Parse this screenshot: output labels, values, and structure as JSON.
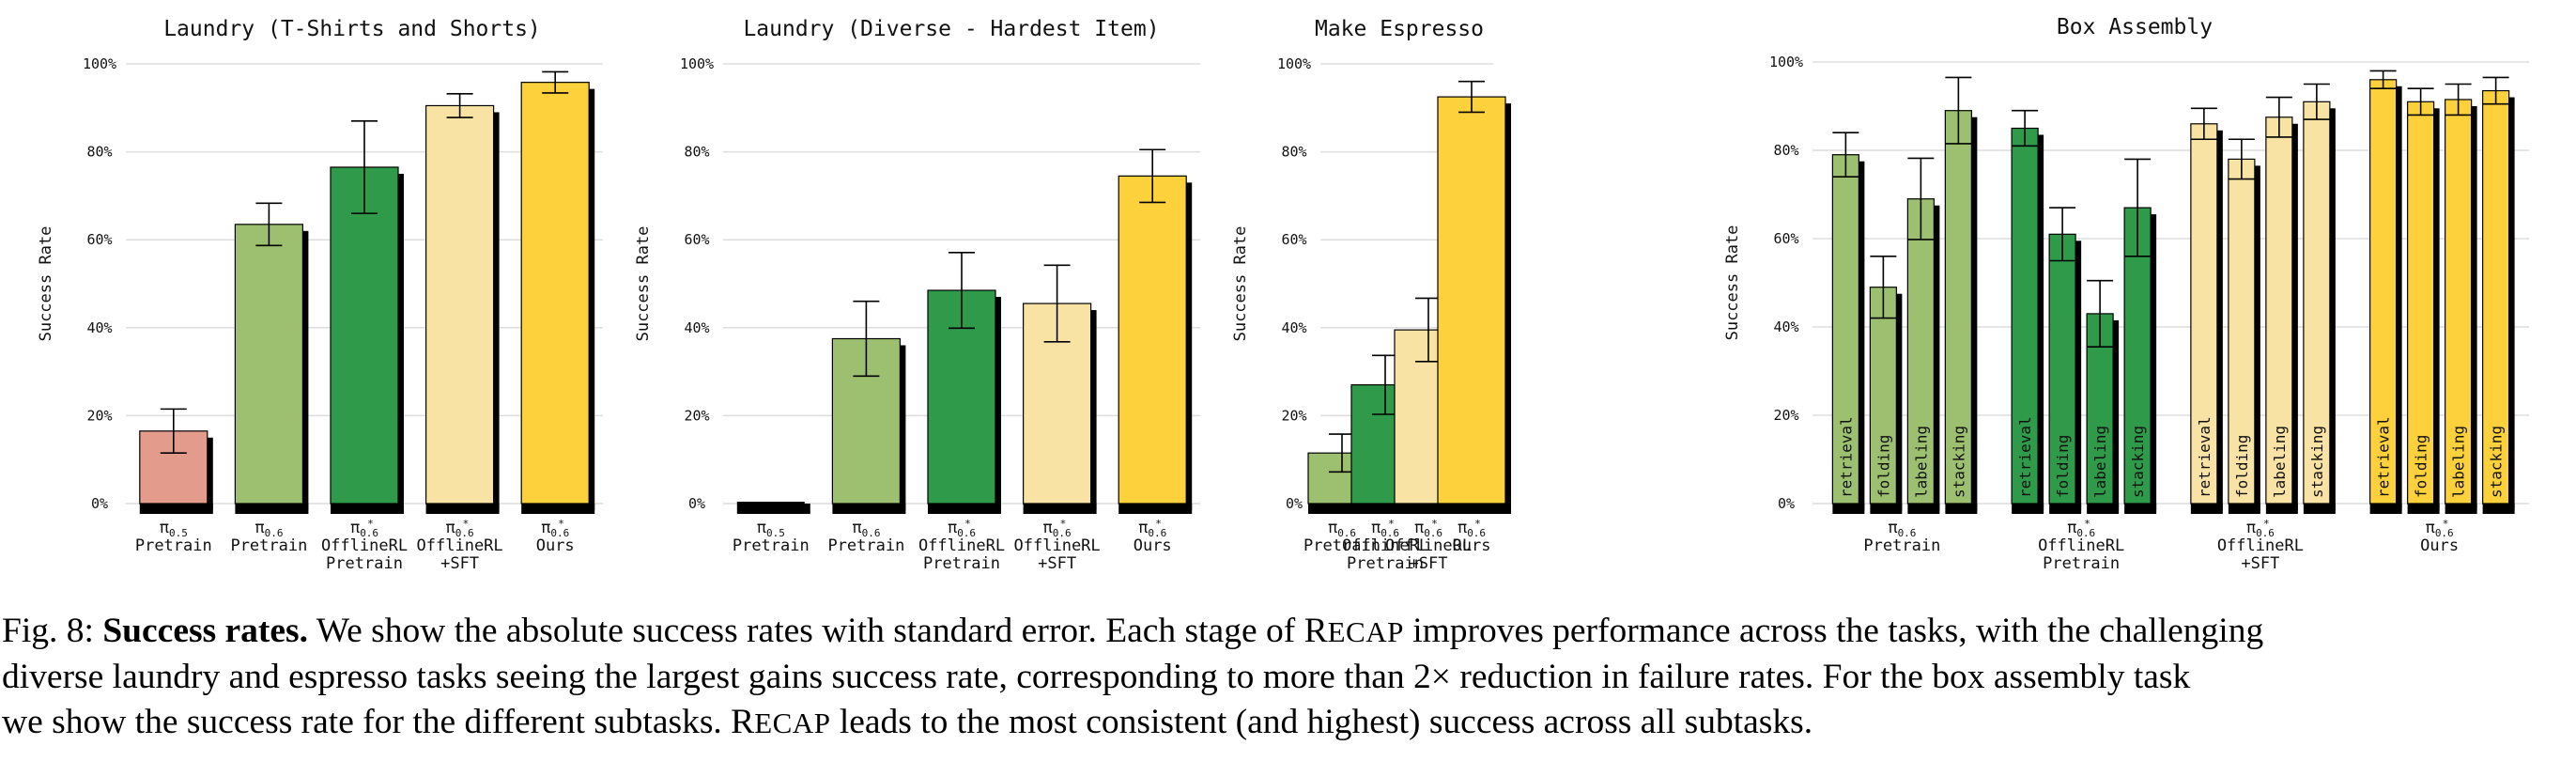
{
  "y_tick_labels": [
    "0%",
    "20%",
    "40%",
    "60%",
    "80%",
    "100%"
  ],
  "colors": {
    "pi05_pretrain": "#e39b8c",
    "pi06_pretrain": "#9cc070",
    "offlinerl_pretrain": "#2f9a4a",
    "offlinerl_sft": "#f9e3a4",
    "ours": "#fdd13c",
    "shadow": "#000000",
    "grid": "#dddddd"
  },
  "chart_data": [
    {
      "type": "bar",
      "title": "Laundry (T-Shirts and Shorts)",
      "ylabel": "Success Rate",
      "ylim": [
        0,
        100
      ],
      "grid": true,
      "categories": [
        {
          "model": "π",
          "sub": "0.5",
          "star": "",
          "lines": [
            "Pretrain"
          ]
        },
        {
          "model": "π",
          "sub": "0.6",
          "star": "",
          "lines": [
            "Pretrain"
          ]
        },
        {
          "model": "π",
          "sub": "0.6",
          "star": "*",
          "lines": [
            "OfflineRL",
            "Pretrain"
          ]
        },
        {
          "model": "π",
          "sub": "0.6",
          "star": "*",
          "lines": [
            "OfflineRL",
            "+SFT"
          ]
        },
        {
          "model": "π",
          "sub": "0.6",
          "star": "*",
          "lines": [
            "Ours"
          ]
        }
      ],
      "values": [
        16.5,
        63.5,
        76.5,
        90.5,
        95.8
      ],
      "errors": [
        5.0,
        4.8,
        10.5,
        2.7,
        2.4
      ],
      "color_keys": [
        "pi05_pretrain",
        "pi06_pretrain",
        "offlinerl_pretrain",
        "offlinerl_sft",
        "ours"
      ]
    },
    {
      "type": "bar",
      "title": "Laundry (Diverse - Hardest Item)",
      "ylabel": "Success Rate",
      "ylim": [
        0,
        100
      ],
      "grid": true,
      "categories": [
        {
          "model": "π",
          "sub": "0.5",
          "star": "",
          "lines": [
            "Pretrain"
          ]
        },
        {
          "model": "π",
          "sub": "0.6",
          "star": "",
          "lines": [
            "Pretrain"
          ]
        },
        {
          "model": "π",
          "sub": "0.6",
          "star": "*",
          "lines": [
            "OfflineRL",
            "Pretrain"
          ]
        },
        {
          "model": "π",
          "sub": "0.6",
          "star": "*",
          "lines": [
            "OfflineRL",
            "+SFT"
          ]
        },
        {
          "model": "π",
          "sub": "0.6",
          "star": "*",
          "lines": [
            "Ours"
          ]
        }
      ],
      "values": [
        0,
        37.5,
        48.5,
        45.5,
        74.5
      ],
      "errors": [
        0,
        8.5,
        8.6,
        8.7,
        6.0
      ],
      "color_keys": [
        "pi05_pretrain",
        "pi06_pretrain",
        "offlinerl_pretrain",
        "offlinerl_sft",
        "ours"
      ]
    },
    {
      "type": "bar",
      "title": "Make Espresso",
      "ylabel": "Success Rate",
      "ylim": [
        0,
        100
      ],
      "grid": true,
      "categories": [
        {
          "model": "π",
          "sub": "0.6",
          "star": "",
          "lines": [
            "Pretrain"
          ]
        },
        {
          "model": "π",
          "sub": "0.6",
          "star": "*",
          "lines": [
            "OfflineRL",
            "Pretrain"
          ]
        },
        {
          "model": "π",
          "sub": "0.6",
          "star": "*",
          "lines": [
            "OfflineRL",
            "+SFT"
          ]
        },
        {
          "model": "π",
          "sub": "0.6",
          "star": "*",
          "lines": [
            "Ours"
          ]
        }
      ],
      "values": [
        11.5,
        27.0,
        39.5,
        92.5
      ],
      "errors": [
        4.3,
        6.7,
        7.2,
        3.5
      ],
      "color_keys": [
        "pi06_pretrain",
        "offlinerl_pretrain",
        "offlinerl_sft",
        "ours"
      ]
    },
    {
      "type": "bar",
      "title": "Box Assembly",
      "ylabel": "Success Rate",
      "ylim": [
        0,
        100
      ],
      "grid": true,
      "subtasks": [
        "retrieval",
        "folding",
        "labeling",
        "stacking"
      ],
      "series": [
        {
          "name": "π0.6 Pretrain",
          "model": "π",
          "sub": "0.6",
          "star": "",
          "lines": [
            "Pretrain"
          ],
          "color_key": "pi06_pretrain",
          "values": [
            79,
            49,
            69,
            89
          ],
          "errors": [
            5.0,
            7.0,
            9.2,
            7.5
          ]
        },
        {
          "name": "π*0.6 OfflineRL Pretrain",
          "model": "π",
          "sub": "0.6",
          "star": "*",
          "lines": [
            "OfflineRL",
            "Pretrain"
          ],
          "color_key": "offlinerl_pretrain",
          "values": [
            85,
            61,
            43,
            67
          ],
          "errors": [
            4.0,
            6.0,
            7.5,
            11.0
          ]
        },
        {
          "name": "π*0.6 OfflineRL +SFT",
          "model": "π",
          "sub": "0.6",
          "star": "*",
          "lines": [
            "OfflineRL",
            "+SFT"
          ],
          "color_key": "offlinerl_sft",
          "values": [
            86,
            78,
            87.5,
            91
          ],
          "errors": [
            3.5,
            4.5,
            4.5,
            4.0
          ]
        },
        {
          "name": "π*0.6 Ours",
          "model": "π",
          "sub": "0.6",
          "star": "*",
          "lines": [
            "Ours"
          ],
          "color_key": "ours",
          "values": [
            96,
            91,
            91.5,
            93.5
          ],
          "errors": [
            2.0,
            3.0,
            3.5,
            3.0
          ]
        }
      ]
    }
  ],
  "caption": {
    "prefix": "Fig. 8: ",
    "bold": "Success rates.",
    "line1": " We show the absolute success rates with standard error. Each stage of ",
    "recap_r": "R",
    "recap_rest": "ECAP",
    "line1_end": " improves performance across the tasks, with the challenging",
    "line2": "diverse laundry and espresso tasks seeing the largest gains success rate, corresponding to more than 2× reduction in failure rates. For the box assembly task",
    "line3": "we show the success rate for the different subtasks. ",
    "line3_end": " leads to the most consistent (and highest) success across all subtasks."
  }
}
